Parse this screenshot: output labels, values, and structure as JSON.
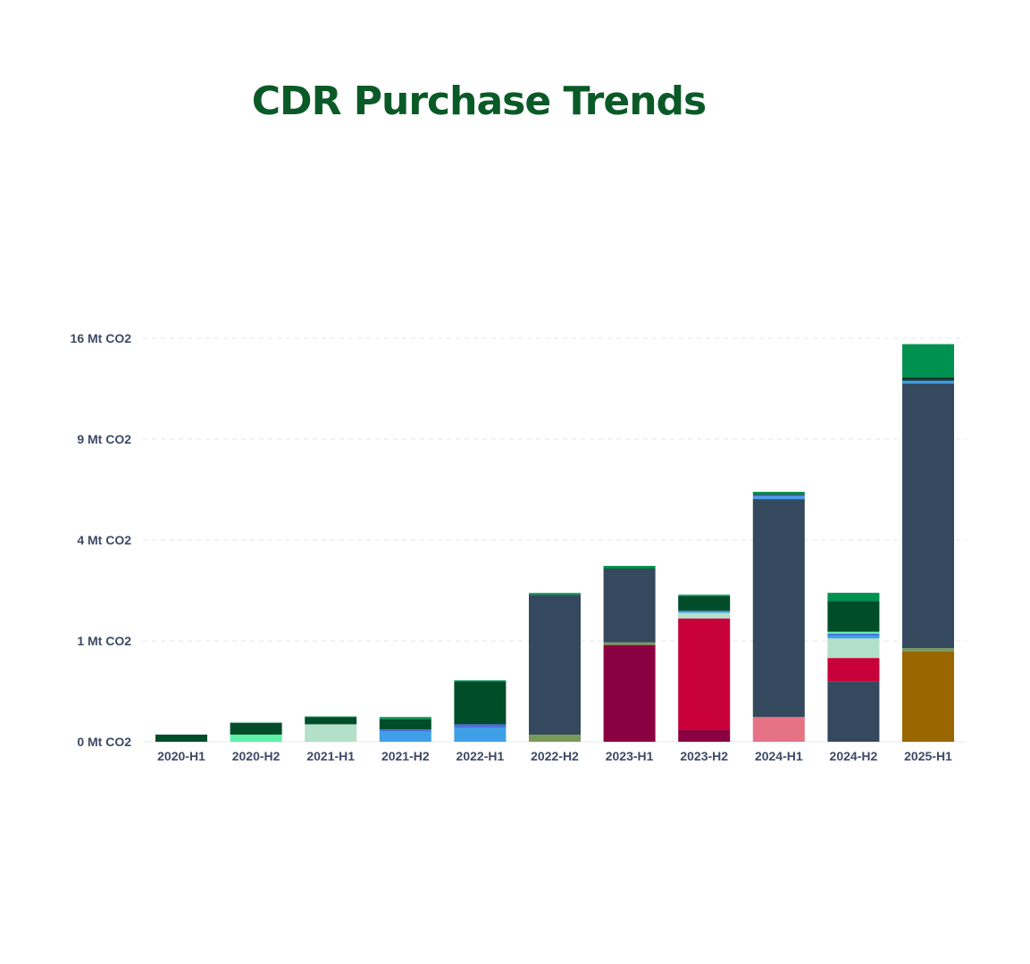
{
  "chart_data": {
    "type": "bar",
    "stacked": true,
    "title": "CDR Purchase Trends",
    "xlabel": "",
    "ylabel": "",
    "y_ticks": [
      "0 Mt CO2",
      "1 Mt CO2",
      "4 Mt CO2",
      "9 Mt CO2",
      "16 Mt CO2"
    ],
    "y_tick_values": [
      0,
      1,
      4,
      9,
      16
    ],
    "y_scale": "sqrt",
    "grid": true,
    "legend": "none",
    "categories": [
      "2020-H1",
      "2020-H2",
      "2021-H1",
      "2021-H2",
      "2022-H1",
      "2022-H2",
      "2023-H1",
      "2023-H2",
      "2024-H1",
      "2024-H2",
      "2025-H1"
    ],
    "series": [
      {
        "color": "#996600",
        "values": [
          0,
          0,
          0,
          0,
          0,
          0,
          0,
          0,
          0,
          0,
          0.8
        ]
      },
      {
        "color": "#7a9a5a",
        "values": [
          0,
          0,
          0,
          0,
          0,
          0.005,
          0,
          0,
          0,
          0,
          0.06
        ]
      },
      {
        "color": "#8b0040",
        "values": [
          0,
          0,
          0,
          0,
          0,
          0,
          0.92,
          0.015,
          0,
          0,
          0
        ]
      },
      {
        "color": "#7a9a5a",
        "values": [
          0,
          0,
          0,
          0,
          0,
          0,
          0.05,
          0,
          0,
          0,
          0
        ]
      },
      {
        "color": "#e57385",
        "values": [
          0,
          0,
          0,
          0,
          0,
          0,
          0,
          0,
          0.06,
          0,
          0
        ]
      },
      {
        "color": "#34495e",
        "values": [
          0,
          0,
          0,
          0,
          0,
          2.12,
          1.95,
          0,
          5.73,
          0.36,
          11.76
        ]
      },
      {
        "color": "#c8003a",
        "values": [
          0,
          0,
          0,
          0,
          0,
          0,
          0,
          1.48,
          0,
          0.33,
          0
        ]
      },
      {
        "color": "#b3e0c8",
        "values": [
          0,
          0,
          0.03,
          0,
          0,
          0,
          0,
          0.14,
          0,
          0.36,
          0
        ]
      },
      {
        "color": "#3fa0e8",
        "values": [
          0,
          0,
          0,
          0.01,
          0.02,
          0,
          0,
          0.04,
          0.12,
          0.06,
          0.14
        ]
      },
      {
        "color": "#4a6ee0",
        "values": [
          0,
          0,
          0,
          0.005,
          0.01,
          0,
          0,
          0.01,
          0.08,
          0.04,
          0.05
        ]
      },
      {
        "color": "#5ef0a8",
        "values": [
          0,
          0.005,
          0,
          0,
          0,
          0,
          0,
          0,
          0,
          0.04,
          0
        ]
      },
      {
        "color": "#004d2a",
        "values": [
          0.005,
          0.025,
          0.03,
          0.035,
          0.33,
          0,
          0.04,
          0.4,
          0.05,
          0.76,
          0.12
        ]
      },
      {
        "color": "#09101a",
        "values": [
          0,
          0.003,
          0,
          0,
          0,
          0,
          0,
          0,
          0,
          0,
          0.1
        ]
      },
      {
        "color": "#009150",
        "values": [
          0,
          0.003,
          0.003,
          0.01,
          0.01,
          0.05,
          0.08,
          0.04,
          0.1,
          0.23,
          2.51
        ]
      }
    ]
  }
}
